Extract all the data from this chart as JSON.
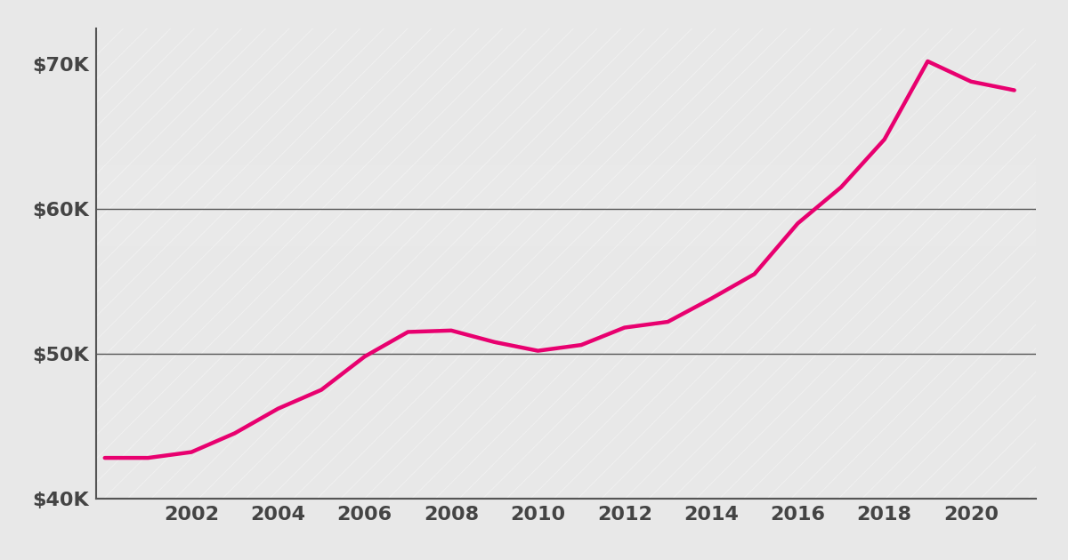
{
  "years": [
    2000,
    2001,
    2002,
    2003,
    2004,
    2005,
    2006,
    2007,
    2008,
    2009,
    2010,
    2011,
    2012,
    2013,
    2014,
    2015,
    2016,
    2017,
    2018,
    2019,
    2020,
    2021
  ],
  "values": [
    42800,
    42800,
    43200,
    44500,
    46200,
    47500,
    49800,
    51500,
    51600,
    50800,
    50200,
    50600,
    51800,
    52200,
    53800,
    55500,
    59000,
    61500,
    64800,
    70200,
    68800,
    68200
  ],
  "line_color": "#E8006F",
  "line_width": 3.2,
  "bg_color_light": "#E8E8E8",
  "bg_color_dark": "#D0D0D0",
  "stripe_color": "#FFFFFF",
  "grid_color": "#555555",
  "tick_color": "#444444",
  "ylim": [
    40000,
    72500
  ],
  "xlim": [
    1999.8,
    2021.5
  ],
  "yticks": [
    40000,
    50000,
    60000,
    70000
  ],
  "ytick_labels": [
    "$40K",
    "$50K",
    "$60K",
    "$70K"
  ],
  "xticks": [
    2002,
    2004,
    2006,
    2008,
    2010,
    2012,
    2014,
    2016,
    2018,
    2020
  ],
  "figsize": [
    12.0,
    6.3
  ],
  "dpi": 100
}
